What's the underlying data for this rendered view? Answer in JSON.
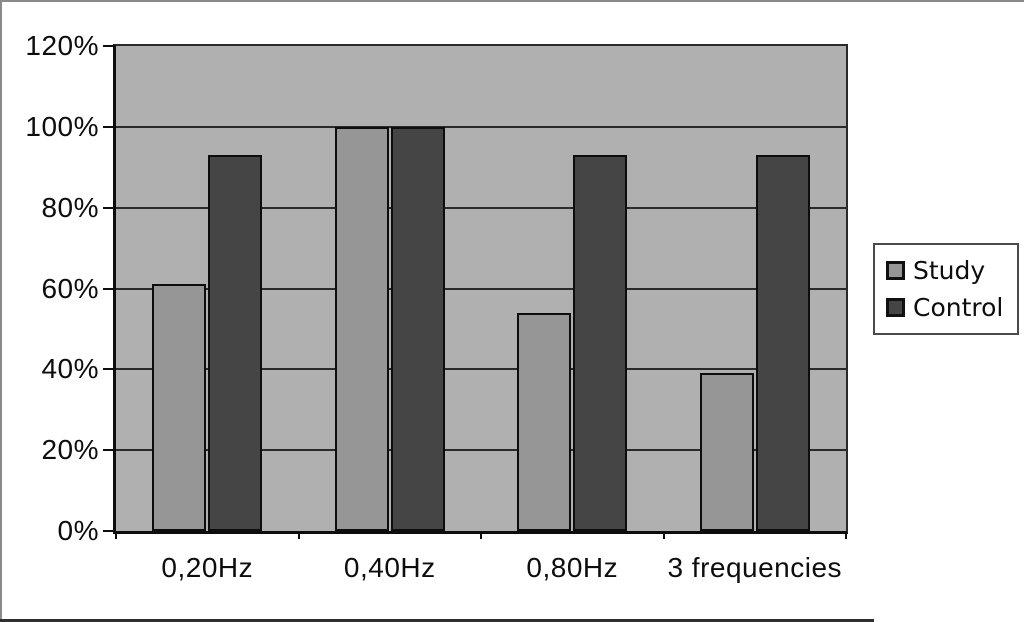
{
  "figure": {
    "background": "#ffffff",
    "frame_color": "#8a8a8a",
    "frame_bottom_color": "#2f2f2f"
  },
  "chart_data": {
    "type": "bar",
    "title": "",
    "xlabel": "",
    "ylabel": "",
    "categories": [
      "0,20Hz",
      "0,40Hz",
      "0,80Hz",
      "3 frequencies"
    ],
    "series": [
      {
        "name": "Study",
        "color": "#969696",
        "values": [
          61,
          100,
          54,
          39
        ]
      },
      {
        "name": "Control",
        "color": "#454545",
        "values": [
          93,
          100,
          93,
          93
        ]
      }
    ],
    "values_unit": "%",
    "ylim": [
      0,
      120
    ],
    "ytick_step": 20,
    "ytick_labels": [
      "0%",
      "20%",
      "40%",
      "60%",
      "80%",
      "100%",
      "120%"
    ],
    "grid": true,
    "gridline_color": "#2a2a2a",
    "plot_background": "#b0b0b0",
    "axis_color": "#0d0d0d",
    "bar_border_color": "#0d0d0d",
    "text_color": "#0d0d0d",
    "legend_position": "right",
    "legend_labels": [
      "Study",
      "Control"
    ]
  }
}
